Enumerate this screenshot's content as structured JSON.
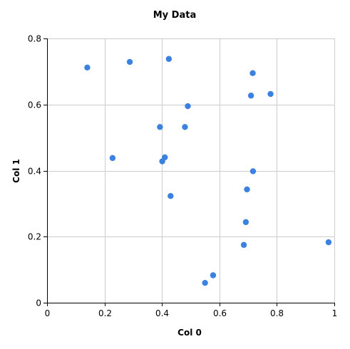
{
  "chart_data": {
    "type": "scatter",
    "title": "My Data",
    "xlabel": "Col 0",
    "ylabel": "Col 1",
    "xlim": [
      0,
      1
    ],
    "ylim": [
      0,
      0.8
    ],
    "xticks": [
      {
        "value": 0,
        "label": "0"
      },
      {
        "value": 0.2,
        "label": "0.2"
      },
      {
        "value": 0.4,
        "label": "0.4"
      },
      {
        "value": 0.6,
        "label": "0.6"
      },
      {
        "value": 0.8,
        "label": "0.8"
      },
      {
        "value": 1,
        "label": "1"
      }
    ],
    "yticks": [
      {
        "value": 0,
        "label": "0"
      },
      {
        "value": 0.2,
        "label": "0.2"
      },
      {
        "value": 0.4,
        "label": "0.4"
      },
      {
        "value": 0.6,
        "label": "0.6"
      },
      {
        "value": 0.8,
        "label": "0.8"
      }
    ],
    "grid": true,
    "legend": "none",
    "marker_color": "#3b82e0",
    "grid_color": "#cccccc",
    "points": [
      {
        "x": 0.14,
        "y": 0.712
      },
      {
        "x": 0.288,
        "y": 0.729
      },
      {
        "x": 0.424,
        "y": 0.738
      },
      {
        "x": 0.716,
        "y": 0.695
      },
      {
        "x": 0.71,
        "y": 0.627
      },
      {
        "x": 0.778,
        "y": 0.632
      },
      {
        "x": 0.49,
        "y": 0.595
      },
      {
        "x": 0.393,
        "y": 0.532
      },
      {
        "x": 0.48,
        "y": 0.532
      },
      {
        "x": 0.228,
        "y": 0.438
      },
      {
        "x": 0.41,
        "y": 0.44
      },
      {
        "x": 0.401,
        "y": 0.428
      },
      {
        "x": 0.717,
        "y": 0.398
      },
      {
        "x": 0.696,
        "y": 0.343
      },
      {
        "x": 0.43,
        "y": 0.323
      },
      {
        "x": 0.692,
        "y": 0.244
      },
      {
        "x": 0.685,
        "y": 0.175
      },
      {
        "x": 0.98,
        "y": 0.183
      },
      {
        "x": 0.578,
        "y": 0.083
      },
      {
        "x": 0.55,
        "y": 0.06
      }
    ]
  }
}
